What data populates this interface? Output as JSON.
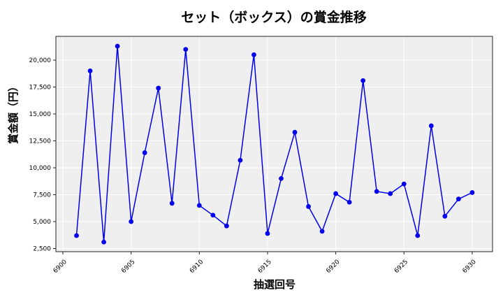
{
  "chart_data": {
    "type": "line",
    "title": "セット（ボックス）の賞金推移",
    "xlabel": "抽選回号",
    "ylabel": "賞金額（円）",
    "x": [
      6901,
      6902,
      6903,
      6904,
      6905,
      6906,
      6907,
      6908,
      6909,
      6910,
      6911,
      6912,
      6913,
      6914,
      6915,
      6916,
      6917,
      6918,
      6919,
      6920,
      6921,
      6922,
      6923,
      6924,
      6925,
      6926,
      6927,
      6928,
      6929,
      6930
    ],
    "series": [
      {
        "name": "賞金額",
        "color": "#0000ee",
        "values": [
          3700,
          19000,
          3100,
          21300,
          5000,
          11400,
          17400,
          6700,
          21000,
          6500,
          5600,
          4600,
          10700,
          20500,
          3900,
          9000,
          13300,
          6400,
          4100,
          7600,
          6800,
          18100,
          7800,
          7600,
          8500,
          3700,
          13900,
          5500,
          7100,
          7700
        ]
      }
    ],
    "xticks": [
      6900,
      6905,
      6910,
      6915,
      6920,
      6925,
      6930
    ],
    "xtick_labels": [
      "6900",
      "6905",
      "6910",
      "6915",
      "6920",
      "6925",
      "6930"
    ],
    "yticks": [
      2500,
      5000,
      7500,
      10000,
      12500,
      15000,
      17500,
      20000
    ],
    "ytick_labels": [
      "2,500",
      "5,000",
      "7,500",
      "10,000",
      "12,500",
      "15,000",
      "17,500",
      "20,000"
    ],
    "xlim": [
      6899.5,
      6931.5
    ],
    "ylim": [
      2200,
      22300
    ],
    "grid": true,
    "legend": null
  }
}
